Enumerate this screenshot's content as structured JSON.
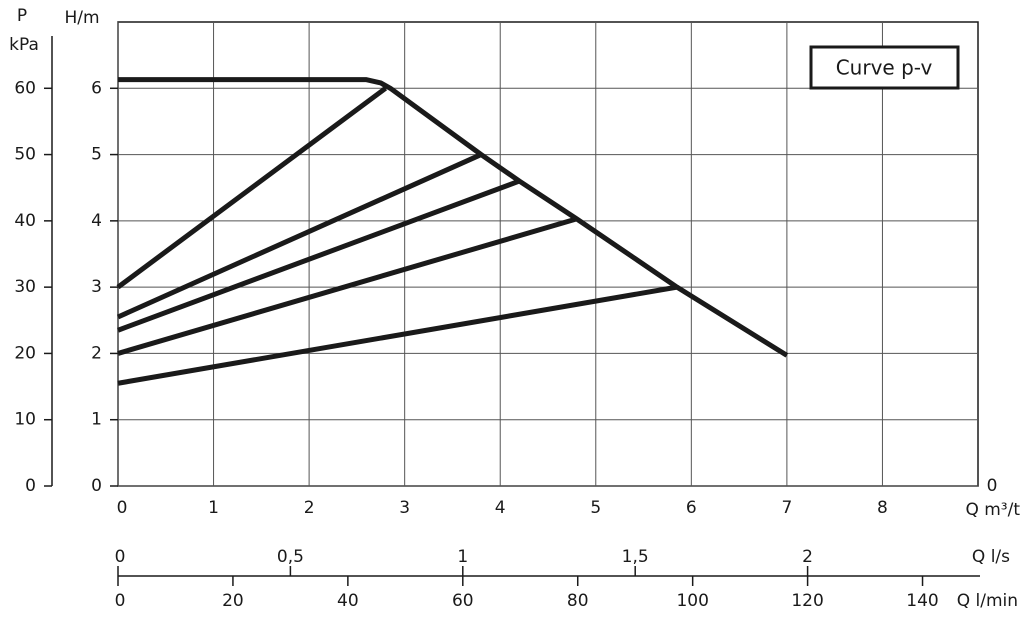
{
  "chart_data": {
    "type": "line",
    "xlabel": "Q m³/t",
    "ylabel": "H/m",
    "y2label_top": "P",
    "y2label": "kPa",
    "corner_label": "0",
    "annotation": "Curve  p-v",
    "xlim": [
      0,
      9
    ],
    "xticks": [
      0,
      1,
      2,
      3,
      4,
      5,
      6,
      7,
      8
    ],
    "ylim": [
      0,
      7
    ],
    "yticks": [
      0,
      1,
      2,
      3,
      4,
      5,
      6
    ],
    "y2lim": [
      0,
      70
    ],
    "y2ticks": [
      0,
      10,
      20,
      30,
      40,
      50,
      60
    ],
    "x2label": "Q l/s",
    "x2lim": [
      0,
      2.5
    ],
    "x2ticks": [
      0,
      {
        "value": 0.5,
        "label": "0,5"
      },
      1,
      {
        "value": 1.5,
        "label": "1,5"
      },
      2
    ],
    "x3label": "Q l/min",
    "x3lim": [
      0,
      150
    ],
    "x3ticks": [
      0,
      20,
      40,
      60,
      80,
      100,
      120,
      140
    ],
    "grid": true,
    "color": "#1a1a1a",
    "series": [
      {
        "x": [
          0,
          2.6,
          2.75,
          2.85,
          3.8,
          4.2,
          4.8,
          5.85,
          7.0
        ],
        "values": [
          6.13,
          6.13,
          6.08,
          6.0,
          5.0,
          4.6,
          4.03,
          3.0,
          1.97
        ]
      },
      {
        "x": [
          0,
          2.8
        ],
        "values": [
          3.0,
          6.0
        ]
      },
      {
        "x": [
          0,
          3.8
        ],
        "values": [
          2.55,
          5.0
        ]
      },
      {
        "x": [
          0,
          4.2
        ],
        "values": [
          2.35,
          4.6
        ]
      },
      {
        "x": [
          0,
          4.8
        ],
        "values": [
          2.0,
          4.03
        ]
      },
      {
        "x": [
          0,
          5.85
        ],
        "values": [
          1.55,
          3.0
        ]
      }
    ]
  }
}
